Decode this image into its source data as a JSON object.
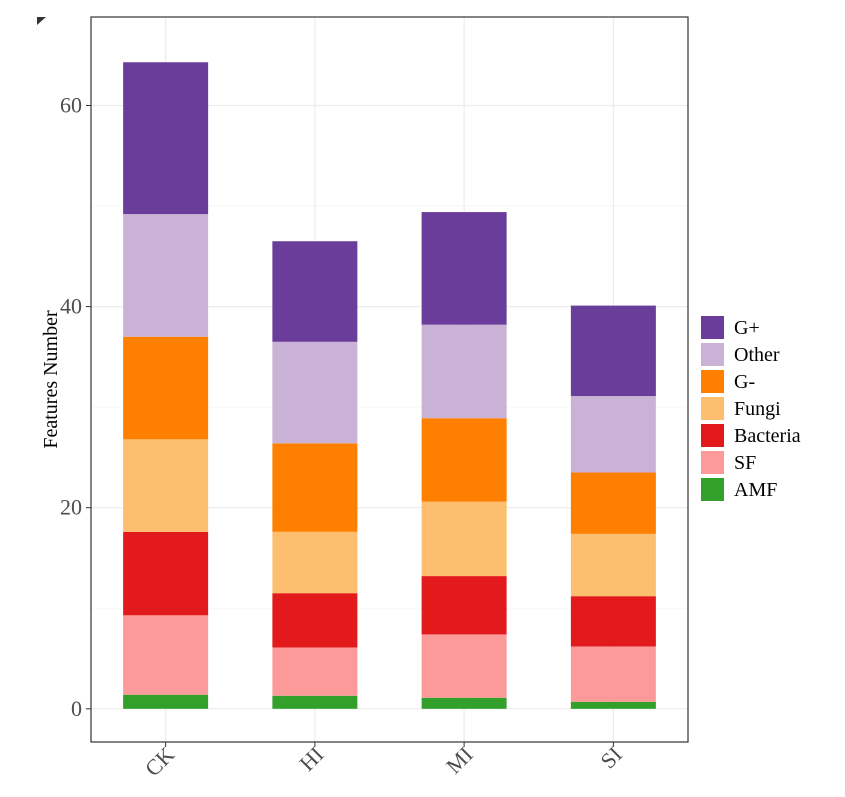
{
  "chart_data": {
    "type": "bar",
    "stacked": true,
    "title": "",
    "xlabel": "",
    "ylabel": "Features Number",
    "ylim": [
      -3.3,
      68.8
    ],
    "yticks": [
      0,
      20,
      40,
      60
    ],
    "categories": [
      "CK",
      "HI",
      "MI",
      "SI"
    ],
    "grid": true,
    "legend_position": "right",
    "series": [
      {
        "name": "AMF",
        "color": "#33a02c",
        "values": [
          1.4,
          1.3,
          1.1,
          0.7
        ]
      },
      {
        "name": "SF",
        "color": "#fb9a99",
        "values": [
          7.9,
          4.8,
          6.3,
          5.5
        ]
      },
      {
        "name": "Bacteria",
        "color": "#e31a1c",
        "values": [
          8.3,
          5.4,
          5.8,
          5.0
        ]
      },
      {
        "name": "Fungi",
        "color": "#fdbf6f",
        "values": [
          9.2,
          6.1,
          7.4,
          6.2
        ]
      },
      {
        "name": "G-",
        "color": "#ff7f00",
        "values": [
          10.2,
          8.8,
          8.3,
          6.1
        ]
      },
      {
        "name": "Other",
        "color": "#cab2d6",
        "values": [
          12.2,
          10.1,
          9.3,
          7.6
        ]
      },
      {
        "name": "G+",
        "color": "#6a3d9a",
        "values": [
          15.1,
          10.0,
          11.2,
          9.0
        ]
      }
    ],
    "legend_order": [
      "G+",
      "Other",
      "G-",
      "Fungi",
      "Bacteria",
      "SF",
      "AMF"
    ]
  }
}
